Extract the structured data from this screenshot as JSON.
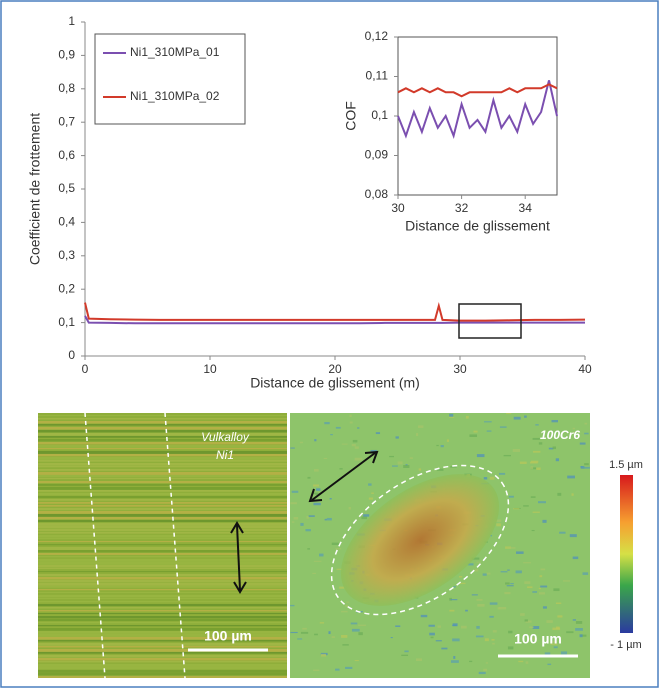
{
  "chart_data": [
    {
      "type": "line",
      "x_label": "Distance de glissement (m)",
      "y_label": "Coefficient de frottement",
      "x": [
        0,
        0.3,
        2,
        4,
        6,
        8,
        10,
        12,
        14,
        16,
        18,
        20,
        22,
        24,
        26,
        28,
        28.3,
        28.6,
        30,
        32,
        34,
        36,
        38,
        40
      ],
      "series": [
        {
          "name": "Ni1_310MPa_01",
          "color": "#7b4fb0",
          "values": [
            0.12,
            0.1,
            0.099,
            0.098,
            0.098,
            0.098,
            0.098,
            0.098,
            0.098,
            0.098,
            0.098,
            0.098,
            0.098,
            0.099,
            0.099,
            0.099,
            0.099,
            0.099,
            0.1,
            0.1,
            0.1,
            0.1,
            0.1,
            0.1
          ]
        },
        {
          "name": "Ni1_310MPa_02",
          "color": "#d23a2a",
          "values": [
            0.16,
            0.112,
            0.11,
            0.109,
            0.108,
            0.108,
            0.108,
            0.108,
            0.108,
            0.108,
            0.108,
            0.108,
            0.108,
            0.108,
            0.108,
            0.108,
            0.15,
            0.108,
            0.106,
            0.106,
            0.107,
            0.108,
            0.108,
            0.109
          ]
        }
      ],
      "xlim": [
        0,
        40
      ],
      "xticks": [
        0,
        10,
        20,
        30,
        40
      ],
      "ylim": [
        0,
        1
      ],
      "yticks": [
        0,
        {
          "value": 0.1,
          "label": "0,1"
        },
        {
          "value": 0.2,
          "label": "0,2"
        },
        {
          "value": 0.3,
          "label": "0,3"
        },
        {
          "value": 0.4,
          "label": "0,4"
        },
        {
          "value": 0.5,
          "label": "0,5"
        },
        {
          "value": 0.6,
          "label": "0,6"
        },
        {
          "value": 0.7,
          "label": "0,7"
        },
        {
          "value": 0.8,
          "label": "0,8"
        },
        {
          "value": 0.9,
          "label": "0,9"
        },
        1
      ],
      "legend": "upper-left"
    },
    {
      "type": "line",
      "x_label": "Distance de glissement",
      "y_label": "COF",
      "x": [
        30,
        30.25,
        30.5,
        30.75,
        31,
        31.25,
        31.5,
        31.75,
        32,
        32.25,
        32.5,
        32.75,
        33,
        33.25,
        33.5,
        33.75,
        34,
        34.25,
        34.5,
        34.75,
        35
      ],
      "series": [
        {
          "name": "Ni1_310MPa_01",
          "color": "#7b4fb0",
          "values": [
            0.1,
            0.095,
            0.101,
            0.096,
            0.102,
            0.097,
            0.1,
            0.095,
            0.103,
            0.097,
            0.099,
            0.096,
            0.104,
            0.097,
            0.1,
            0.096,
            0.103,
            0.098,
            0.101,
            0.109,
            0.1
          ]
        },
        {
          "name": "Ni1_310MPa_02",
          "color": "#d23a2a",
          "values": [
            0.106,
            0.107,
            0.106,
            0.107,
            0.106,
            0.107,
            0.106,
            0.106,
            0.105,
            0.106,
            0.106,
            0.106,
            0.106,
            0.106,
            0.107,
            0.106,
            0.107,
            0.107,
            0.107,
            0.108,
            0.107
          ]
        }
      ],
      "xlim": [
        30,
        35
      ],
      "xticks": [
        30,
        32,
        34
      ],
      "ylim": [
        0.08,
        0.12
      ],
      "yticks": [
        {
          "value": 0.08,
          "label": "0,08"
        },
        {
          "value": 0.09,
          "label": "0,09"
        },
        {
          "value": 0.1,
          "label": "0,1"
        },
        {
          "value": 0.11,
          "label": "0,11"
        },
        {
          "value": 0.12,
          "label": "0,12"
        }
      ]
    }
  ],
  "images": {
    "left_label_1": "Vulkalloy",
    "left_label_2": "Ni1",
    "right_label": "100Cr6",
    "scale_left": "100 µm",
    "scale_right": "100 µm",
    "colorbar_top": "1.5 µm",
    "colorbar_bottom": "- 1 µm"
  }
}
